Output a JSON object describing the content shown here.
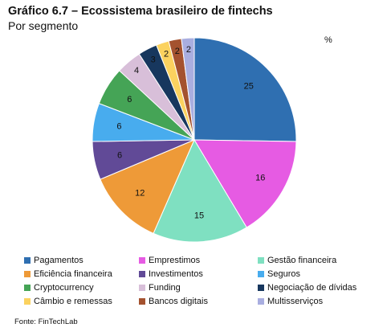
{
  "title": "Gráfico 6.7 – Ecossistema brasileiro de fintechs",
  "subtitle": "Por segmento",
  "unit": "%",
  "source": "Fonte: FinTechLab",
  "chart_data": {
    "type": "pie",
    "title": "Gráfico 6.7 – Ecossistema brasileiro de fintechs",
    "subtitle": "Por segmento",
    "unit": "%",
    "start_angle_deg": 0,
    "direction": "clockwise",
    "legend_position": "bottom",
    "slices": [
      {
        "label": "Pagamentos",
        "value": 25,
        "color": "#2f6fb1"
      },
      {
        "label": "Emprestimos",
        "value": 16,
        "color": "#e65be3"
      },
      {
        "label": "Gestão financeira",
        "value": 15,
        "color": "#7fe0c1"
      },
      {
        "label": "Eficiência financeira",
        "value": 12,
        "color": "#ee9a38"
      },
      {
        "label": "Investimentos",
        "value": 6,
        "color": "#614a97"
      },
      {
        "label": "Seguros",
        "value": 6,
        "color": "#48acee"
      },
      {
        "label": "Cryptocurrency",
        "value": 6,
        "color": "#45a456"
      },
      {
        "label": "Funding",
        "value": 4,
        "color": "#d8bfd9"
      },
      {
        "label": "Negociação de dívidas",
        "value": 3,
        "color": "#17375e"
      },
      {
        "label": "Câmbio e remessas",
        "value": 2,
        "color": "#fbd25f"
      },
      {
        "label": "Bancos digitais",
        "value": 2,
        "color": "#a4522f"
      },
      {
        "label": "Multisserviços",
        "value": 2,
        "color": "#a9aee0"
      }
    ]
  }
}
